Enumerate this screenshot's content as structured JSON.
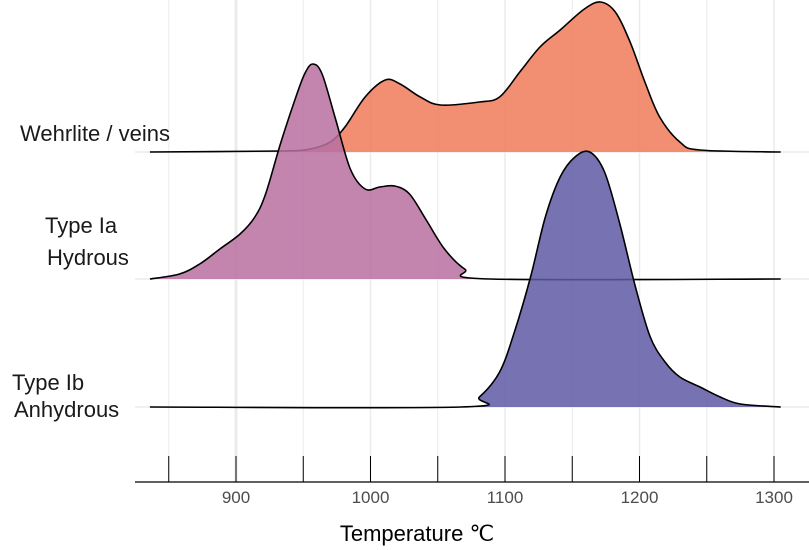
{
  "chart_data": {
    "type": "ridgeline",
    "title": "",
    "xlabel": "Temperature ℃",
    "ylabel": "",
    "xlim": [
      836,
      1305
    ],
    "xticks": [
      850,
      900,
      950,
      1000,
      1050,
      1100,
      1150,
      1200,
      1250,
      1300
    ],
    "xtick_labels": [
      "900",
      "1000",
      "1100",
      "1200",
      "1300"
    ],
    "xtick_label_values": [
      900,
      1000,
      1100,
      1200,
      1300
    ],
    "grid": true,
    "series": [
      {
        "name": "Wehrlite / veins",
        "label_lines": [
          "Wehrlite / veins"
        ],
        "color": "#f07a58",
        "row": 0,
        "x": [
          836,
          933,
          955,
          970,
          981,
          996,
          1011,
          1022,
          1037,
          1052,
          1081,
          1096,
          1111,
          1126,
          1141,
          1159,
          1171,
          1182,
          1193,
          1204,
          1215,
          1230,
          1245,
          1305
        ],
        "density": [
          0,
          0.01,
          0.03,
          0.1,
          0.25,
          0.55,
          0.72,
          0.68,
          0.55,
          0.47,
          0.5,
          0.55,
          0.8,
          1.05,
          1.22,
          1.43,
          1.5,
          1.4,
          1.1,
          0.7,
          0.35,
          0.1,
          0.02,
          0
        ]
      },
      {
        "name": "Type Ia Hydrous",
        "label_lines": [
          "Type Ia",
          "Hydrous"
        ],
        "color": "#b870a0",
        "row": 1,
        "x": [
          836,
          858,
          873,
          888,
          903,
          914,
          922,
          933,
          944,
          951,
          957,
          964,
          974,
          985,
          996,
          1007,
          1018,
          1029,
          1041,
          1055,
          1070,
          1089,
          1305
        ],
        "density": [
          0,
          0.05,
          0.15,
          0.3,
          0.45,
          0.62,
          0.85,
          1.35,
          1.8,
          2.05,
          2.15,
          2.05,
          1.6,
          1.1,
          0.9,
          0.92,
          0.93,
          0.85,
          0.6,
          0.3,
          0.1,
          0,
          0
        ]
      },
      {
        "name": "Type Ib Anhydrous",
        "label_lines": [
          "Type Ib",
          "Anhydrous"
        ],
        "color": "#5f5aa6",
        "row": 2,
        "x": [
          836,
          1067,
          1081,
          1096,
          1107,
          1119,
          1130,
          1141,
          1152,
          1163,
          1174,
          1185,
          1197,
          1208,
          1219,
          1230,
          1245,
          1260,
          1275,
          1305
        ],
        "density": [
          0,
          0,
          0.1,
          0.35,
          0.75,
          1.3,
          1.9,
          2.3,
          2.5,
          2.55,
          2.35,
          1.85,
          1.2,
          0.7,
          0.45,
          0.3,
          0.2,
          0.1,
          0.03,
          0
        ]
      }
    ]
  }
}
